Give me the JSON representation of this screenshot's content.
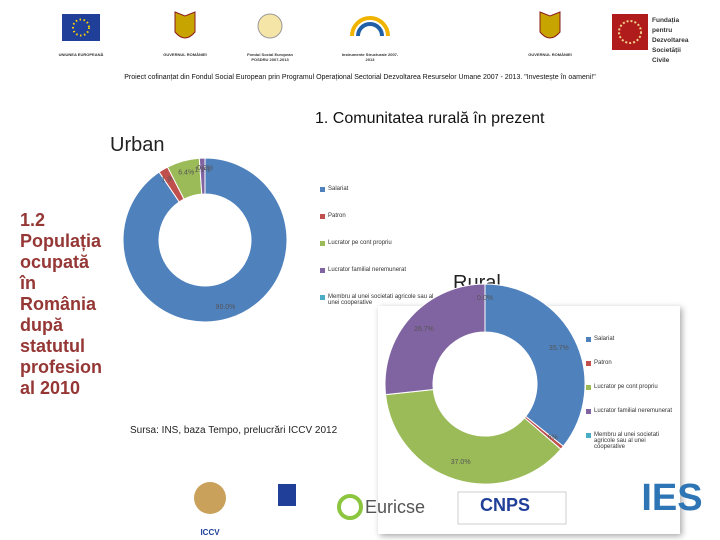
{
  "header": {
    "logo_captions": [
      "UNIUNEA EUROPEANĂ",
      "GUVERNUL ROMÂNIEI",
      "Fondul Social European POSDRU 2007-2013",
      "Instrumente Structurale 2007-2013",
      "GUVERNUL ROMÂNIEI"
    ],
    "partner": "Fundația pentru Dezvoltarea Societății Civile",
    "project": "Proiect cofinanțat din Fondul Social European prin Programul Operațional Sectorial Dezvoltarea Resurselor Umane 2007 - 2013. \"Investește în oameni!\""
  },
  "title": "1. Comunitatea rurală în prezent",
  "side_title_lines": [
    "1.2",
    "Populația",
    "ocupată",
    "în",
    "România",
    "după",
    "statutul",
    "profesion",
    "al 2010"
  ],
  "source": "Sursa: INS, baza Tempo, prelucrări ICCV 2012",
  "footer_logos": [
    "ICCV",
    "Euricse",
    "CNPS",
    "IES"
  ],
  "chart_data": [
    {
      "type": "donut",
      "title": "Urban",
      "categories": [
        "Salariat",
        "Patron",
        "Lucrator pe cont propriu",
        "Lucrator familial neremunerat",
        "Membru al unei societati agricole sau al unei cooperative"
      ],
      "values": [
        90.0,
        1.9,
        6.4,
        1.1,
        0.0
      ],
      "value_labels": [
        "90.0%",
        "1.9%",
        "6.4%",
        "1.1%",
        "0.0%"
      ],
      "colors": [
        "#4f81bd",
        "#c0504d",
        "#9bbb59",
        "#8064a2",
        "#4bacc6"
      ]
    },
    {
      "type": "donut",
      "title": "Rural",
      "categories": [
        "Salariat",
        "Patron",
        "Lucrator pe cont propriu",
        "Lucrator familial neremunerat",
        "Membru al unei societati agricole sau al unei cooperative"
      ],
      "values": [
        35.7,
        0.6,
        37.0,
        26.7,
        0.0
      ],
      "value_labels": [
        "35.7%",
        "0.6%",
        "37.0%",
        "26.7%",
        "0.0%"
      ],
      "colors": [
        "#4f81bd",
        "#c0504d",
        "#9bbb59",
        "#8064a2",
        "#4bacc6"
      ]
    }
  ]
}
